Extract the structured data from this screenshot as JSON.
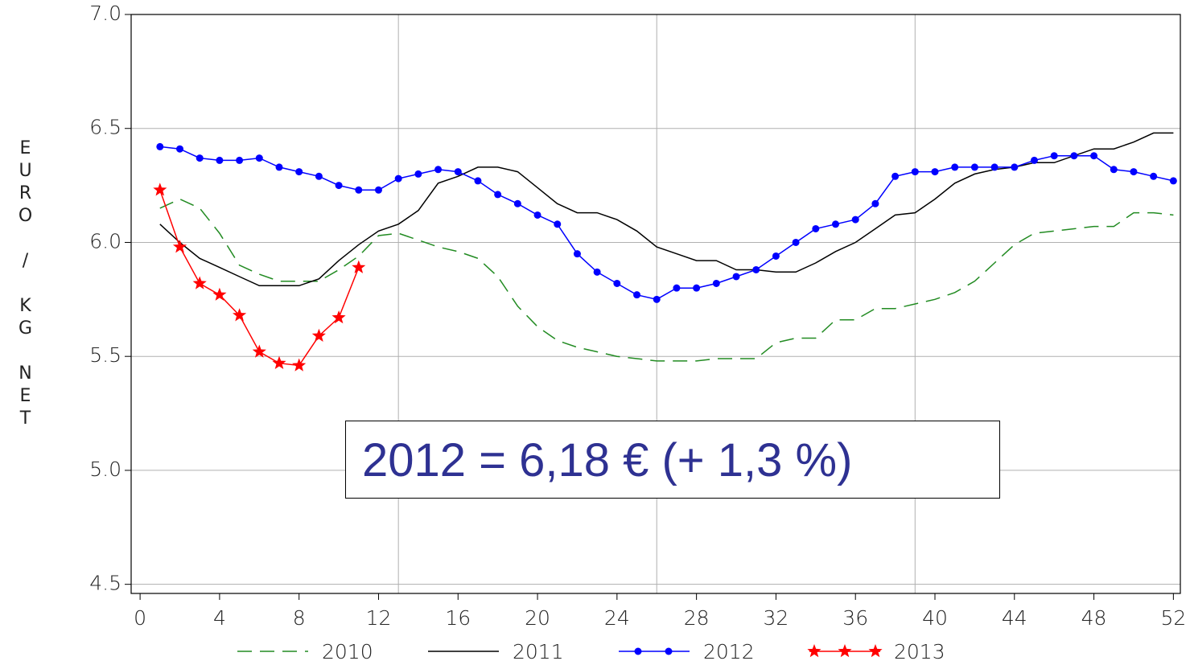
{
  "chart_data": {
    "type": "line",
    "ylabel": "EURO / KG NET",
    "annotation": "2012 = 6,18 € (+ 1,3 %)",
    "x": [
      1,
      2,
      3,
      4,
      5,
      6,
      7,
      8,
      9,
      10,
      11,
      12,
      13,
      14,
      15,
      16,
      17,
      18,
      19,
      20,
      21,
      22,
      23,
      24,
      25,
      26,
      27,
      28,
      29,
      30,
      31,
      32,
      33,
      34,
      35,
      36,
      37,
      38,
      39,
      40,
      41,
      42,
      43,
      44,
      45,
      46,
      47,
      48,
      49,
      50,
      51,
      52
    ],
    "xlim": [
      -0.45,
      52.35
    ],
    "xticks": [
      0,
      4,
      8,
      12,
      16,
      20,
      24,
      28,
      32,
      36,
      40,
      44,
      48,
      52
    ],
    "xgrid_lines": [
      13,
      26,
      39
    ],
    "ylim": [
      4.46,
      7.0
    ],
    "yticks": [
      {
        "value": 4.5,
        "label": "4.5"
      },
      {
        "value": 5,
        "label": "5.0"
      },
      {
        "value": 5.5,
        "label": "5.5"
      },
      {
        "value": 6,
        "label": "6.0"
      },
      {
        "value": 6.5,
        "label": "6.5"
      },
      {
        "value": 7,
        "label": "7.0"
      }
    ],
    "grid": true,
    "legend": "bottom",
    "series": [
      {
        "name": "2010",
        "color": "#228b22",
        "line_style": "dashed",
        "marker": "none",
        "values": [
          6.15,
          6.19,
          6.15,
          6.04,
          5.9,
          5.86,
          5.83,
          5.83,
          5.83,
          5.88,
          5.94,
          6.03,
          6.04,
          6.01,
          5.98,
          5.96,
          5.93,
          5.85,
          5.72,
          5.63,
          5.57,
          5.54,
          5.52,
          5.5,
          5.49,
          5.48,
          5.48,
          5.48,
          5.49,
          5.49,
          5.49,
          5.56,
          5.58,
          5.58,
          5.66,
          5.66,
          5.71,
          5.71,
          5.73,
          5.75,
          5.78,
          5.83,
          5.91,
          5.99,
          6.04,
          6.05,
          6.06,
          6.07,
          6.07,
          6.13,
          6.13,
          6.12
        ]
      },
      {
        "name": "2011",
        "color": "#000000",
        "line_style": "solid",
        "marker": "none",
        "values": [
          6.08,
          6.0,
          5.93,
          5.89,
          5.85,
          5.81,
          5.81,
          5.81,
          5.84,
          5.92,
          5.99,
          6.05,
          6.08,
          6.14,
          6.26,
          6.29,
          6.33,
          6.33,
          6.31,
          6.24,
          6.17,
          6.13,
          6.13,
          6.1,
          6.05,
          5.98,
          5.95,
          5.92,
          5.92,
          5.88,
          5.88,
          5.87,
          5.87,
          5.91,
          5.96,
          6.0,
          6.06,
          6.12,
          6.13,
          6.19,
          6.26,
          6.3,
          6.32,
          6.33,
          6.35,
          6.35,
          6.38,
          6.41,
          6.41,
          6.44,
          6.48,
          6.48
        ]
      },
      {
        "name": "2012",
        "color": "#0000ff",
        "line_style": "solid",
        "marker": "circle",
        "values": [
          6.42,
          6.41,
          6.37,
          6.36,
          6.36,
          6.37,
          6.33,
          6.31,
          6.29,
          6.25,
          6.23,
          6.23,
          6.28,
          6.3,
          6.32,
          6.31,
          6.27,
          6.21,
          6.17,
          6.12,
          6.08,
          5.95,
          5.87,
          5.82,
          5.77,
          5.75,
          5.8,
          5.8,
          5.82,
          5.85,
          5.88,
          5.94,
          6.0,
          6.06,
          6.08,
          6.1,
          6.17,
          6.29,
          6.31,
          6.31,
          6.33,
          6.33,
          6.33,
          6.33,
          6.36,
          6.38,
          6.38,
          6.38,
          6.32,
          6.31,
          6.29,
          6.27
        ]
      },
      {
        "name": "2013",
        "color": "#ff0000",
        "line_style": "solid",
        "marker": "star",
        "values": [
          6.23,
          5.98,
          5.82,
          5.77,
          5.68,
          5.52,
          5.47,
          5.46,
          5.59,
          5.67,
          5.89,
          null,
          null,
          null,
          null,
          null,
          null,
          null,
          null,
          null,
          null,
          null,
          null,
          null,
          null,
          null,
          null,
          null,
          null,
          null,
          null,
          null,
          null,
          null,
          null,
          null,
          null,
          null,
          null,
          null,
          null,
          null,
          null,
          null,
          null,
          null,
          null,
          null,
          null,
          null,
          null,
          null
        ]
      }
    ]
  }
}
